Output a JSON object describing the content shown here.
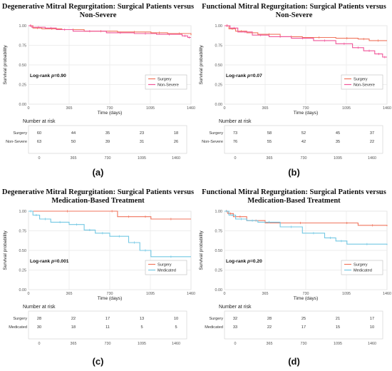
{
  "colors": {
    "surgery": "#f0765e",
    "comparator_pink": "#f0569a",
    "medicated": "#74c8e4",
    "grid": "#e8e8e8"
  },
  "common": {
    "xlabel": "Time (days)",
    "ylabel": "Survival probability",
    "risk_heading": "Number at risk",
    "xticks": [
      "0",
      "365",
      "730",
      "1095",
      "1460"
    ],
    "yticks": [
      "0.00",
      "0.25",
      "0.50",
      "0.75",
      "1.00"
    ]
  },
  "panels": [
    {
      "title": "Degenerative Mitral Regurgitation: Surgical Patients versus Non-Severe",
      "caption": "(a)",
      "logrank_prefix": "Log-rank ",
      "logrank_p": "p",
      "logrank_value": "=0.90",
      "legend": [
        "Surgery",
        "Non-Severe"
      ],
      "risk": [
        {
          "label": "Surgery",
          "values": [
            "60",
            "44",
            "35",
            "23",
            "18"
          ]
        },
        {
          "label": "Non-Severe",
          "values": [
            "63",
            "50",
            "39",
            "31",
            "26"
          ]
        }
      ]
    },
    {
      "title": "Functional Mitral Regurgitation: Surgical Patients versus Non-Severe",
      "caption": "(b)",
      "logrank_prefix": "Log-rank ",
      "logrank_p": "p",
      "logrank_value": "=0.07",
      "legend": [
        "Surgery",
        "Non-Severe"
      ],
      "risk": [
        {
          "label": "Surgery",
          "values": [
            "73",
            "58",
            "52",
            "45",
            "37"
          ]
        },
        {
          "label": "Non-Severe",
          "values": [
            "76",
            "55",
            "42",
            "35",
            "22"
          ]
        }
      ]
    },
    {
      "title": "Degenerative Mitral Regurgitation: Surgical Patients versus Medication-Based Treatment",
      "caption": "(c)",
      "logrank_prefix": "Log-rank ",
      "logrank_p": "p",
      "logrank_value": "=0.001",
      "legend": [
        "Surgery",
        "Medicated"
      ],
      "risk": [
        {
          "label": "Surgery",
          "values": [
            "28",
            "22",
            "17",
            "13",
            "10"
          ]
        },
        {
          "label": "Medicated",
          "values": [
            "30",
            "18",
            "11",
            "5",
            "5"
          ]
        }
      ]
    },
    {
      "title": "Functional Mitral Regurgitation: Surgical Patients versus Medication-Based Treatment",
      "caption": "(d)",
      "logrank_prefix": "Log-rank ",
      "logrank_p": "p",
      "logrank_value": "=0.20",
      "legend": [
        "Surgery",
        "Medicated"
      ],
      "risk": [
        {
          "label": "Surgery",
          "values": [
            "32",
            "28",
            "25",
            "21",
            "17"
          ]
        },
        {
          "label": "Medicated",
          "values": [
            "33",
            "22",
            "17",
            "15",
            "10"
          ]
        }
      ]
    }
  ],
  "chart_data": [
    {
      "type": "line",
      "title": "Degenerative Mitral Regurgitation: Surgical Patients versus Non-Severe",
      "xlabel": "Time (days)",
      "ylabel": "Survival probability",
      "xlim": [
        0,
        1460
      ],
      "ylim": [
        0,
        1
      ],
      "xticks": [
        0,
        365,
        730,
        1095,
        1460
      ],
      "yticks": [
        0,
        0.25,
        0.5,
        0.75,
        1
      ],
      "grid": true,
      "legend_position": "bottom-right",
      "series": [
        {
          "name": "Surgery",
          "color": "#f0765e",
          "points": [
            [
              0,
              1.0
            ],
            [
              40,
              0.97
            ],
            [
              120,
              0.96
            ],
            [
              300,
              0.95
            ],
            [
              500,
              0.93
            ],
            [
              800,
              0.92
            ],
            [
              1100,
              0.91
            ],
            [
              1250,
              0.9
            ],
            [
              1460,
              0.88
            ]
          ]
        },
        {
          "name": "Non-Severe",
          "color": "#f0569a",
          "points": [
            [
              0,
              1.0
            ],
            [
              30,
              0.98
            ],
            [
              150,
              0.97
            ],
            [
              250,
              0.95
            ],
            [
              400,
              0.93
            ],
            [
              700,
              0.91
            ],
            [
              950,
              0.9
            ],
            [
              1150,
              0.89
            ],
            [
              1380,
              0.87
            ],
            [
              1430,
              0.85
            ],
            [
              1460,
              0.85
            ]
          ]
        }
      ]
    },
    {
      "type": "line",
      "title": "Functional Mitral Regurgitation: Surgical Patients versus Non-Severe",
      "xlabel": "Time (days)",
      "ylabel": "Survival probability",
      "xlim": [
        0,
        1460
      ],
      "ylim": [
        0,
        1
      ],
      "xticks": [
        0,
        365,
        730,
        1095,
        1460
      ],
      "yticks": [
        0,
        0.25,
        0.5,
        0.75,
        1
      ],
      "grid": true,
      "legend_position": "bottom-right",
      "series": [
        {
          "name": "Surgery",
          "color": "#f0765e",
          "points": [
            [
              0,
              1.0
            ],
            [
              40,
              0.96
            ],
            [
              100,
              0.93
            ],
            [
              200,
              0.91
            ],
            [
              300,
              0.89
            ],
            [
              500,
              0.86
            ],
            [
              700,
              0.85
            ],
            [
              1000,
              0.84
            ],
            [
              1200,
              0.83
            ],
            [
              1300,
              0.81
            ],
            [
              1460,
              0.81
            ]
          ]
        },
        {
          "name": "Non-Severe",
          "color": "#f0569a",
          "points": [
            [
              0,
              1.0
            ],
            [
              50,
              0.97
            ],
            [
              120,
              0.92
            ],
            [
              250,
              0.88
            ],
            [
              400,
              0.86
            ],
            [
              600,
              0.84
            ],
            [
              800,
              0.81
            ],
            [
              1000,
              0.77
            ],
            [
              1150,
              0.72
            ],
            [
              1250,
              0.68
            ],
            [
              1350,
              0.64
            ],
            [
              1420,
              0.6
            ],
            [
              1460,
              0.6
            ]
          ]
        }
      ]
    },
    {
      "type": "line",
      "title": "Degenerative Mitral Regurgitation: Surgical Patients versus Medication-Based Treatment",
      "xlabel": "Time (days)",
      "ylabel": "Survival probability",
      "xlim": [
        0,
        1460
      ],
      "ylim": [
        0,
        1
      ],
      "xticks": [
        0,
        365,
        730,
        1095,
        1460
      ],
      "yticks": [
        0,
        0.25,
        0.5,
        0.75,
        1
      ],
      "grid": true,
      "legend_position": "bottom-right",
      "series": [
        {
          "name": "Surgery",
          "color": "#f0765e",
          "points": [
            [
              0,
              1.0
            ],
            [
              700,
              1.0
            ],
            [
              800,
              0.93
            ],
            [
              1000,
              0.93
            ],
            [
              1100,
              0.9
            ],
            [
              1460,
              0.9
            ]
          ]
        },
        {
          "name": "Medicated",
          "color": "#74c8e4",
          "points": [
            [
              0,
              1.0
            ],
            [
              40,
              0.95
            ],
            [
              100,
              0.9
            ],
            [
              200,
              0.86
            ],
            [
              365,
              0.83
            ],
            [
              500,
              0.76
            ],
            [
              600,
              0.72
            ],
            [
              730,
              0.68
            ],
            [
              900,
              0.6
            ],
            [
              1000,
              0.5
            ],
            [
              1100,
              0.42
            ],
            [
              1460,
              0.42
            ]
          ]
        }
      ]
    },
    {
      "type": "line",
      "title": "Functional Mitral Regurgitation: Surgical Patients versus Medication-Based Treatment",
      "xlabel": "Time (days)",
      "ylabel": "Survival probability",
      "xlim": [
        0,
        1460
      ],
      "ylim": [
        0,
        1
      ],
      "xticks": [
        0,
        365,
        730,
        1095,
        1460
      ],
      "yticks": [
        0,
        0.25,
        0.5,
        0.75,
        1
      ],
      "grid": true,
      "legend_position": "bottom-right",
      "series": [
        {
          "name": "Surgery",
          "color": "#f0765e",
          "points": [
            [
              0,
              1.0
            ],
            [
              30,
              0.97
            ],
            [
              80,
              0.93
            ],
            [
              200,
              0.88
            ],
            [
              365,
              0.85
            ],
            [
              1000,
              0.85
            ],
            [
              1200,
              0.82
            ],
            [
              1460,
              0.81
            ]
          ]
        },
        {
          "name": "Medicated",
          "color": "#74c8e4",
          "points": [
            [
              0,
              1.0
            ],
            [
              40,
              0.95
            ],
            [
              100,
              0.9
            ],
            [
              200,
              0.88
            ],
            [
              300,
              0.86
            ],
            [
              500,
              0.8
            ],
            [
              700,
              0.72
            ],
            [
              900,
              0.66
            ],
            [
              1000,
              0.62
            ],
            [
              1100,
              0.58
            ],
            [
              1460,
              0.57
            ]
          ]
        }
      ]
    }
  ]
}
